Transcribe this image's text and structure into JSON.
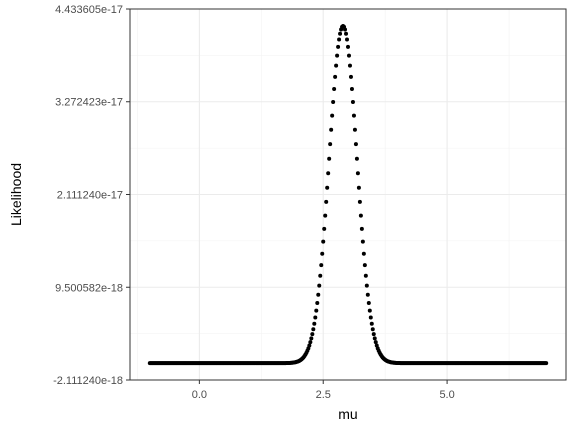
{
  "chart_data": {
    "type": "scatter",
    "title": "",
    "xlabel": "mu",
    "ylabel": "Likelihood",
    "xlim": [
      -1.4,
      7.4
    ],
    "ylim": [
      -2.11124e-18,
      4.433605e-17
    ],
    "x_ticks": [
      0.0,
      2.5,
      5.0
    ],
    "x_tick_labels": [
      "0.0",
      "2.5",
      "5.0"
    ],
    "y_ticks": [
      -2.11124e-18,
      9.500582e-18,
      2.11124e-17,
      3.272423e-17,
      4.433605e-17
    ],
    "y_tick_labels": [
      "-2.111240e-18",
      "9.500582e-18",
      "2.111240e-17",
      "3.272423e-17",
      "4.433605e-17"
    ],
    "grid": true,
    "legend": "none",
    "point_color": "#000000",
    "series": [
      {
        "x_start": -1.0,
        "x_end": 7.0,
        "n_points": 401,
        "peak_x": 2.9,
        "peak_y": 4.22e-17,
        "sd": 0.28
      }
    ]
  }
}
